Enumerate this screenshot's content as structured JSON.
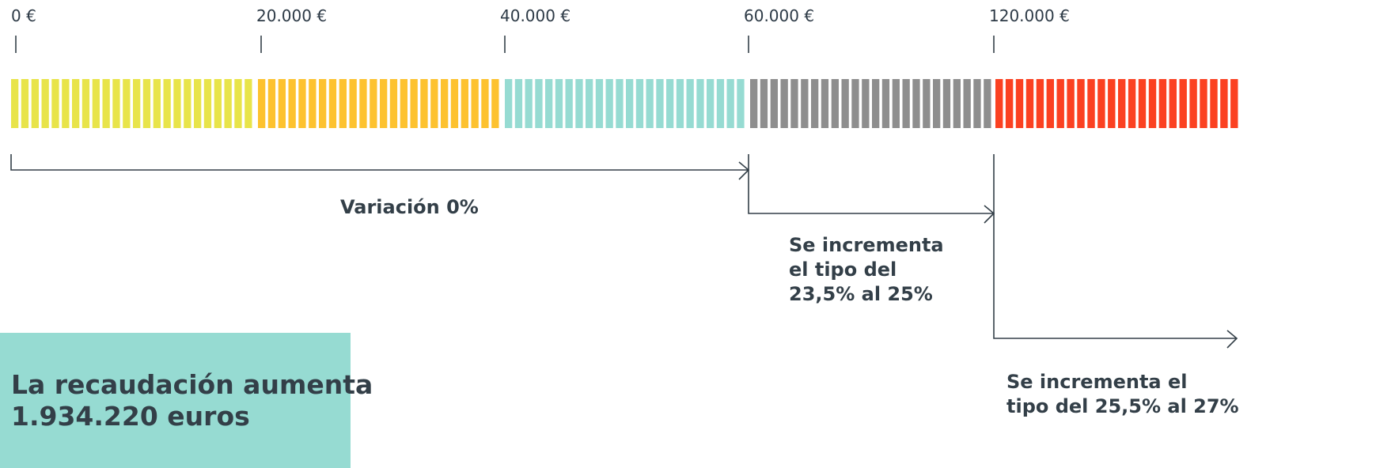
{
  "ticks": [
    "0 €",
    "20.000 €",
    "40.000 €",
    "60.000 €",
    "120.000 €"
  ],
  "brackets": [
    {
      "label": [
        "Variación 0%"
      ]
    },
    {
      "label": [
        "Se incrementa",
        "el tipo del",
        "23,5% al 25%"
      ]
    },
    {
      "label": [
        "Se incrementa el",
        "tipo del 25,5% al 27%"
      ]
    }
  ],
  "summary": {
    "lines": [
      "La recaudación aumenta",
      "1.934.220 euros"
    ]
  }
}
